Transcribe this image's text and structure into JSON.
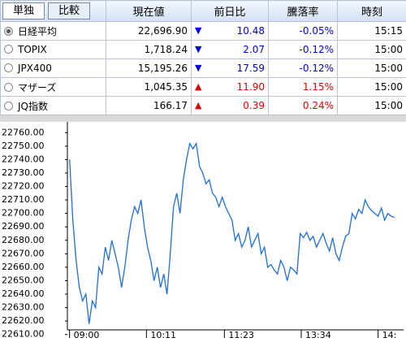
{
  "tabs": [
    "単独",
    "比較"
  ],
  "table": {
    "header": [
      "現在値",
      "前日比",
      "騰落率",
      "時刻"
    ],
    "rows": [
      [
        "日経平均",
        "22,696.90",
        "10.48",
        "-0.05%",
        "15:15"
      ],
      [
        "TOPIX",
        "1,718.24",
        "2.07",
        "-0.12%",
        "15:00"
      ],
      [
        "JPX400",
        "15,195.26",
        "17.59",
        "-0.12%",
        "15:00"
      ],
      [
        "マザーズ",
        "1,045.35",
        "11.90",
        "1.15%",
        "15:00"
      ],
      [
        "JQ指数",
        "166.17",
        "0.39",
        "0.24%",
        "15:00"
      ]
    ]
  },
  "chart_data": {
    "type": "line",
    "color": "#1a6fe0",
    "x": [
      0,
      3,
      6,
      9,
      12,
      15,
      18,
      21,
      24,
      27,
      30,
      33,
      36,
      39,
      42,
      45,
      48,
      51,
      54,
      57,
      60,
      63,
      66,
      69,
      72,
      75,
      78,
      81,
      84,
      87,
      90,
      93,
      96,
      99,
      102,
      105,
      108,
      111,
      114,
      117,
      120,
      123,
      126,
      129,
      132,
      135,
      138,
      141,
      144,
      147,
      150,
      153,
      156,
      159,
      162,
      165,
      168,
      171,
      174,
      177,
      180,
      183,
      186,
      189,
      192,
      195,
      198,
      201,
      204,
      207,
      210,
      213,
      216,
      219,
      222,
      225,
      228,
      231,
      234,
      237,
      240,
      243,
      246,
      249,
      252,
      255,
      258,
      261,
      264,
      267,
      270,
      273,
      276,
      279,
      282,
      285,
      288,
      291,
      294,
      297,
      300
    ],
    "values": [
      22740,
      22695,
      22665,
      22645,
      22635,
      22640,
      22618,
      22635,
      22630,
      22660,
      22655,
      22675,
      22665,
      22680,
      22670,
      22660,
      22645,
      22660,
      22680,
      22695,
      22705,
      22700,
      22710,
      22690,
      22675,
      22665,
      22650,
      22660,
      22645,
      22655,
      22640,
      22670,
      22705,
      22715,
      22700,
      22725,
      22740,
      22752,
      22748,
      22752,
      22735,
      22730,
      22722,
      22725,
      22715,
      22712,
      22705,
      22712,
      22705,
      22700,
      22695,
      22680,
      22685,
      22675,
      22680,
      22690,
      22675,
      22680,
      22685,
      22670,
      22675,
      22660,
      22662,
      22658,
      22655,
      22665,
      22660,
      22650,
      22660,
      22658,
      22655,
      22685,
      22682,
      22686,
      22680,
      22683,
      22675,
      22680,
      22685,
      22678,
      22672,
      22682,
      22670,
      22665,
      22675,
      22683,
      22685,
      22700,
      22696,
      22703,
      22700,
      22710,
      22705,
      22702,
      22700,
      22698,
      22704,
      22695,
      22700,
      22698,
      22697
    ],
    "xlim": [
      -2,
      308.5
    ],
    "xticks": [
      {
        "value": 0,
        "label": "09:00"
      },
      {
        "value": 71,
        "label": "10:11"
      },
      {
        "value": 143,
        "label": "11:23"
      },
      {
        "value": 214,
        "label": "13:34"
      },
      {
        "value": 285,
        "label": "14:"
      }
    ],
    "ylim": [
      22605,
      22765
    ],
    "yticks": [
      {
        "value": 22760,
        "label": "22760.00"
      },
      {
        "value": 22750,
        "label": "22750.00"
      },
      {
        "value": 22740,
        "label": "22740.00"
      },
      {
        "value": 22730,
        "label": "22730.00"
      },
      {
        "value": 22720,
        "label": "22720.00"
      },
      {
        "value": 22710,
        "label": "22710.00"
      },
      {
        "value": 22700,
        "label": "22700.00"
      },
      {
        "value": 22690,
        "label": "22690.00"
      },
      {
        "value": 22680,
        "label": "22680.00"
      },
      {
        "value": 22670,
        "label": "22670.00"
      },
      {
        "value": 22660,
        "label": "22660.00"
      },
      {
        "value": 22650,
        "label": "22650.00"
      },
      {
        "value": 22640,
        "label": "22640.00"
      },
      {
        "value": 22630,
        "label": "22630.00"
      },
      {
        "value": 22620,
        "label": "22620.00"
      },
      {
        "value": 22610,
        "label": "22610.00"
      }
    ]
  }
}
